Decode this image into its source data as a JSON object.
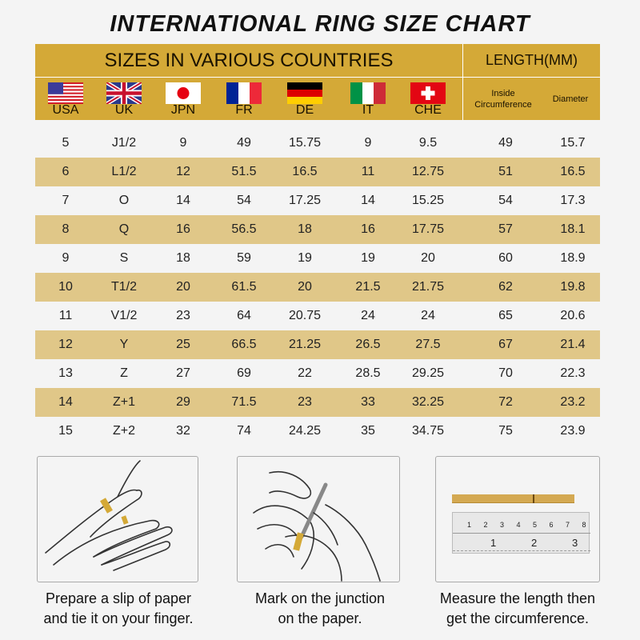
{
  "title": "INTERNATIONAL RING SIZE CHART",
  "header": {
    "sizes_label": "SIZES IN VARIOUS COUNTRIES",
    "length_label": "LENGTH(MM)",
    "countries": [
      {
        "code": "USA",
        "flag": "usa-flag"
      },
      {
        "code": "UK",
        "flag": "uk-flag"
      },
      {
        "code": "JPN",
        "flag": "japan-flag"
      },
      {
        "code": "FR",
        "flag": "france-flag"
      },
      {
        "code": "DE",
        "flag": "germany-flag"
      },
      {
        "code": "IT",
        "flag": "italy-flag"
      },
      {
        "code": "CHE",
        "flag": "switzerland-flag"
      }
    ],
    "inside_circumference": "Inside Circumference",
    "diameter": "Diameter"
  },
  "colors": {
    "header": "#d4a937",
    "stripe": "#e0c788",
    "background": "#f4f4f4"
  },
  "rows": [
    [
      "5",
      "J1/2",
      "9",
      "49",
      "15.75",
      "9",
      "9.5",
      "49",
      "15.7"
    ],
    [
      "6",
      "L1/2",
      "12",
      "51.5",
      "16.5",
      "11",
      "12.75",
      "51",
      "16.5"
    ],
    [
      "7",
      "O",
      "14",
      "54",
      "17.25",
      "14",
      "15.25",
      "54",
      "17.3"
    ],
    [
      "8",
      "Q",
      "16",
      "56.5",
      "18",
      "16",
      "17.75",
      "57",
      "18.1"
    ],
    [
      "9",
      "S",
      "18",
      "59",
      "19",
      "19",
      "20",
      "60",
      "18.9"
    ],
    [
      "10",
      "T1/2",
      "20",
      "61.5",
      "20",
      "21.5",
      "21.75",
      "62",
      "19.8"
    ],
    [
      "11",
      "V1/2",
      "23",
      "64",
      "20.75",
      "24",
      "24",
      "65",
      "20.6"
    ],
    [
      "12",
      "Y",
      "25",
      "66.5",
      "21.25",
      "26.5",
      "27.5",
      "67",
      "21.4"
    ],
    [
      "13",
      "Z",
      "27",
      "69",
      "22",
      "28.5",
      "29.25",
      "70",
      "22.3"
    ],
    [
      "14",
      "Z+1",
      "29",
      "71.5",
      "23",
      "33",
      "32.25",
      "72",
      "23.2"
    ],
    [
      "15",
      "Z+2",
      "32",
      "74",
      "24.25",
      "35",
      "34.75",
      "75",
      "23.9"
    ]
  ],
  "steps": [
    {
      "line1": "Prepare a slip of paper",
      "line2": "and tie it on your finger."
    },
    {
      "line1": "Mark on the junction",
      "line2": "on the paper."
    },
    {
      "line1": "Measure the length then",
      "line2": "get the circumference."
    }
  ],
  "ruler": {
    "cm_ticks": [
      "1",
      "2",
      "3",
      "4",
      "5",
      "6",
      "7",
      "8"
    ],
    "inch_ticks": [
      "1",
      "2",
      "3"
    ]
  }
}
